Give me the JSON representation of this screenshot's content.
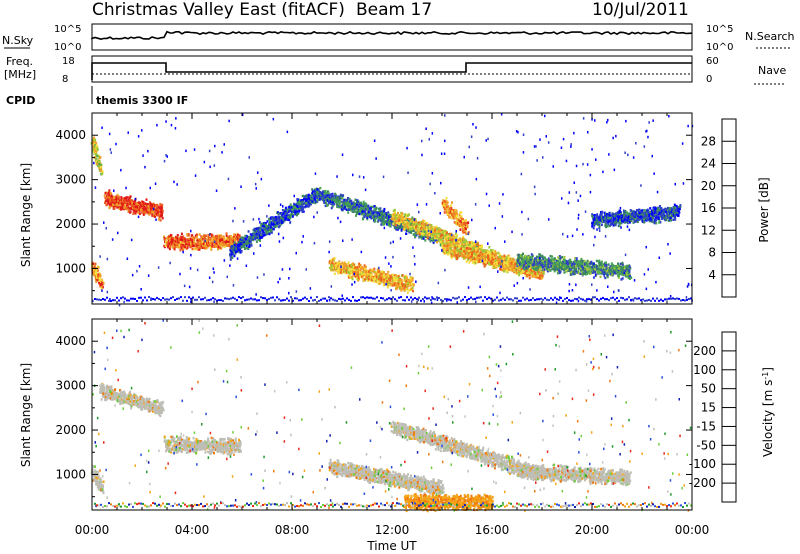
{
  "header": {
    "title": "Christmas Valley East (fitACF)",
    "beam": "Beam 17",
    "date": "10/Jul/2011"
  },
  "status_panels": {
    "nsky_label": "N.Sky",
    "nsky_ticks": [
      "10^5",
      "10^0"
    ],
    "nsearch_label": "N.Search",
    "nsearch_ticks": [
      "10^5",
      "10^0"
    ],
    "freq_label": "Freq.",
    "freq_unit": "[MHz]",
    "freq_ticks": [
      "18",
      "8"
    ],
    "nave_label": "Nave",
    "nave_ticks": [
      "60",
      "0"
    ],
    "cpid_label": "CPID",
    "cpid_value": "themis 3300 IF"
  },
  "colors": {
    "power": [
      "#0000ff",
      "#2f3fc8",
      "#3c8a5c",
      "#4aa653",
      "#9ec83a",
      "#f4e03c",
      "#f0a028",
      "#ec6020",
      "#e01818"
    ],
    "velocity": [
      "#101fb0",
      "#2a4fd8",
      "#1e9a2a",
      "#6ccc3a",
      "#bebeb6",
      "#c8c8c0",
      "#f4a418",
      "#f07810",
      "#e82818"
    ]
  },
  "chart_data": [
    {
      "type": "heatmap",
      "name": "power",
      "ylabel": "Slant Range [km]",
      "xlabel": "Time UT",
      "x_ticks": [
        "00:00",
        "04:00",
        "08:00",
        "12:00",
        "16:00",
        "20:00",
        "00:00"
      ],
      "xlim_hours": [
        0,
        24
      ],
      "ylim": [
        200,
        4500
      ],
      "y_ticks": [
        1000,
        2000,
        3000,
        4000
      ],
      "colorbar_label": "Power [dB]",
      "colorbar_ticks": [
        4,
        8,
        12,
        16,
        20,
        24,
        28
      ],
      "colorbar_range": [
        0,
        32
      ],
      "features": [
        {
          "t0": 0.0,
          "t1": 0.35,
          "r0": 3900,
          "r1": 3200,
          "level": 18
        },
        {
          "t0": 0.5,
          "t1": 2.8,
          "r0": 2600,
          "r1": 2300,
          "level": 28
        },
        {
          "t0": 0.0,
          "t1": 0.4,
          "r0": 1100,
          "r1": 600,
          "level": 24
        },
        {
          "t0": 2.9,
          "t1": 5.9,
          "r0": 1600,
          "r1": 1650,
          "level": 26
        },
        {
          "t0": 5.5,
          "t1": 9.0,
          "r0": 1400,
          "r1": 2700,
          "level": 6
        },
        {
          "t0": 9.0,
          "t1": 14.0,
          "r0": 2700,
          "r1": 1700,
          "level": 8
        },
        {
          "t0": 9.5,
          "t1": 12.8,
          "r0": 1100,
          "r1": 650,
          "level": 22
        },
        {
          "t0": 12.0,
          "t1": 17.0,
          "r0": 2200,
          "r1": 1050,
          "level": 20
        },
        {
          "t0": 14.0,
          "t1": 15.0,
          "r0": 2500,
          "r1": 1900,
          "level": 24
        },
        {
          "t0": 14.0,
          "t1": 18.0,
          "r0": 1500,
          "r1": 900,
          "level": 22
        },
        {
          "t0": 17.0,
          "t1": 21.5,
          "r0": 1200,
          "r1": 950,
          "level": 10
        },
        {
          "t0": 20.0,
          "t1": 23.5,
          "r0": 2100,
          "r1": 2300,
          "level": 6
        }
      ]
    },
    {
      "type": "heatmap",
      "name": "velocity",
      "ylabel": "Slant Range [km]",
      "xlabel": "Time UT",
      "x_ticks": [
        "00:00",
        "04:00",
        "08:00",
        "12:00",
        "16:00",
        "20:00",
        "00:00"
      ],
      "xlim_hours": [
        0,
        24
      ],
      "ylim": [
        200,
        4500
      ],
      "y_ticks": [
        1000,
        2000,
        3000,
        4000
      ],
      "colorbar_label": "Velocity [m s^-1]",
      "colorbar_ticks": [
        200,
        100,
        50,
        15,
        -15,
        -50,
        -100,
        -200
      ],
      "features": [
        {
          "t0": 0.3,
          "t1": 2.8,
          "r0": 2900,
          "r1": 2500,
          "level": 0
        },
        {
          "t0": 2.9,
          "t1": 5.9,
          "r0": 1700,
          "r1": 1650,
          "level": 0
        },
        {
          "t0": 0.0,
          "t1": 0.4,
          "r0": 1100,
          "r1": 700,
          "level": 0
        },
        {
          "t0": 9.5,
          "t1": 14.0,
          "r0": 1200,
          "r1": 700,
          "level": 0
        },
        {
          "t0": 12.0,
          "t1": 18.0,
          "r0": 2100,
          "r1": 1000,
          "level": 0
        },
        {
          "t0": 17.0,
          "t1": 21.5,
          "r0": 1100,
          "r1": 950,
          "level": 0
        },
        {
          "t0": 12.5,
          "t1": 16.0,
          "r0": 400,
          "r1": 400,
          "level": -60
        }
      ]
    }
  ]
}
